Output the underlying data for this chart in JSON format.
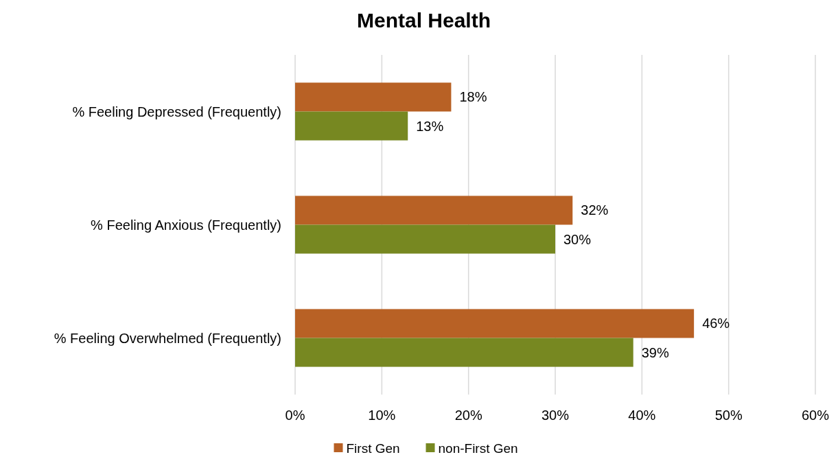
{
  "chart_data": {
    "type": "bar",
    "orientation": "horizontal",
    "title": "Mental Health",
    "categories": [
      "% Feeling Depressed (Frequently)",
      "% Feeling Anxious (Frequently)",
      "% Feeling Overwhelmed (Frequently)"
    ],
    "series": [
      {
        "name": "First Gen",
        "color": "#b86125",
        "values": [
          18,
          32,
          46
        ],
        "value_labels": [
          "18%",
          "32%",
          "46%"
        ]
      },
      {
        "name": "non-First Gen",
        "color": "#778821",
        "values": [
          13,
          30,
          39
        ],
        "value_labels": [
          "13%",
          "30%",
          "39%"
        ]
      }
    ],
    "xlim": [
      0,
      60
    ],
    "xticks": [
      {
        "value": 0,
        "label": "0%"
      },
      {
        "value": 10,
        "label": "10%"
      },
      {
        "value": 20,
        "label": "20%"
      },
      {
        "value": 30,
        "label": "30%"
      },
      {
        "value": 40,
        "label": "40%"
      },
      {
        "value": 50,
        "label": "50%"
      },
      {
        "value": 60,
        "label": "60%"
      }
    ],
    "grid": "x",
    "legend": "bottom"
  }
}
